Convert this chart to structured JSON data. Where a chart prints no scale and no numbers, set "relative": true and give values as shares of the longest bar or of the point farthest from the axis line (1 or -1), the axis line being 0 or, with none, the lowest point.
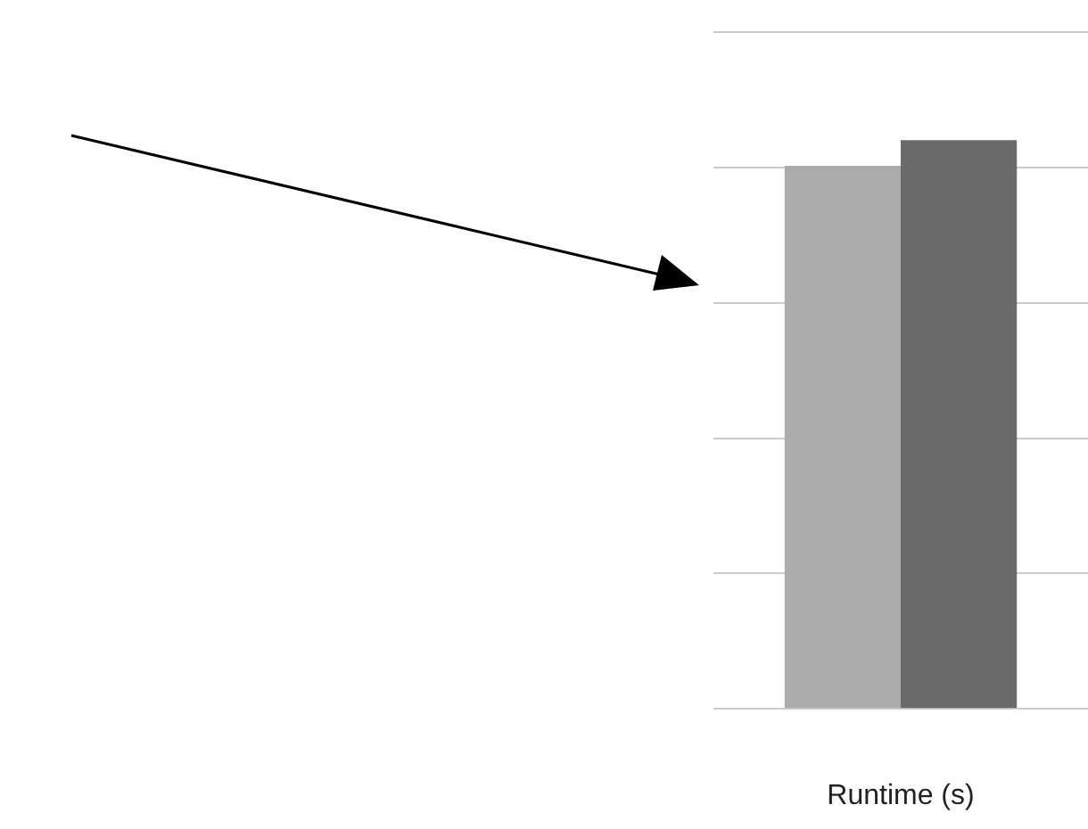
{
  "chart_data": {
    "type": "bar",
    "relative": true,
    "grid": "y",
    "categories": [
      null
    ],
    "xlabel": "Runtime (s)",
    "series": [
      {
        "color": "#ababab",
        "values": [
          0.955
        ]
      },
      {
        "color": "#6a6a6c",
        "values": [
          1
        ]
      }
    ]
  }
}
